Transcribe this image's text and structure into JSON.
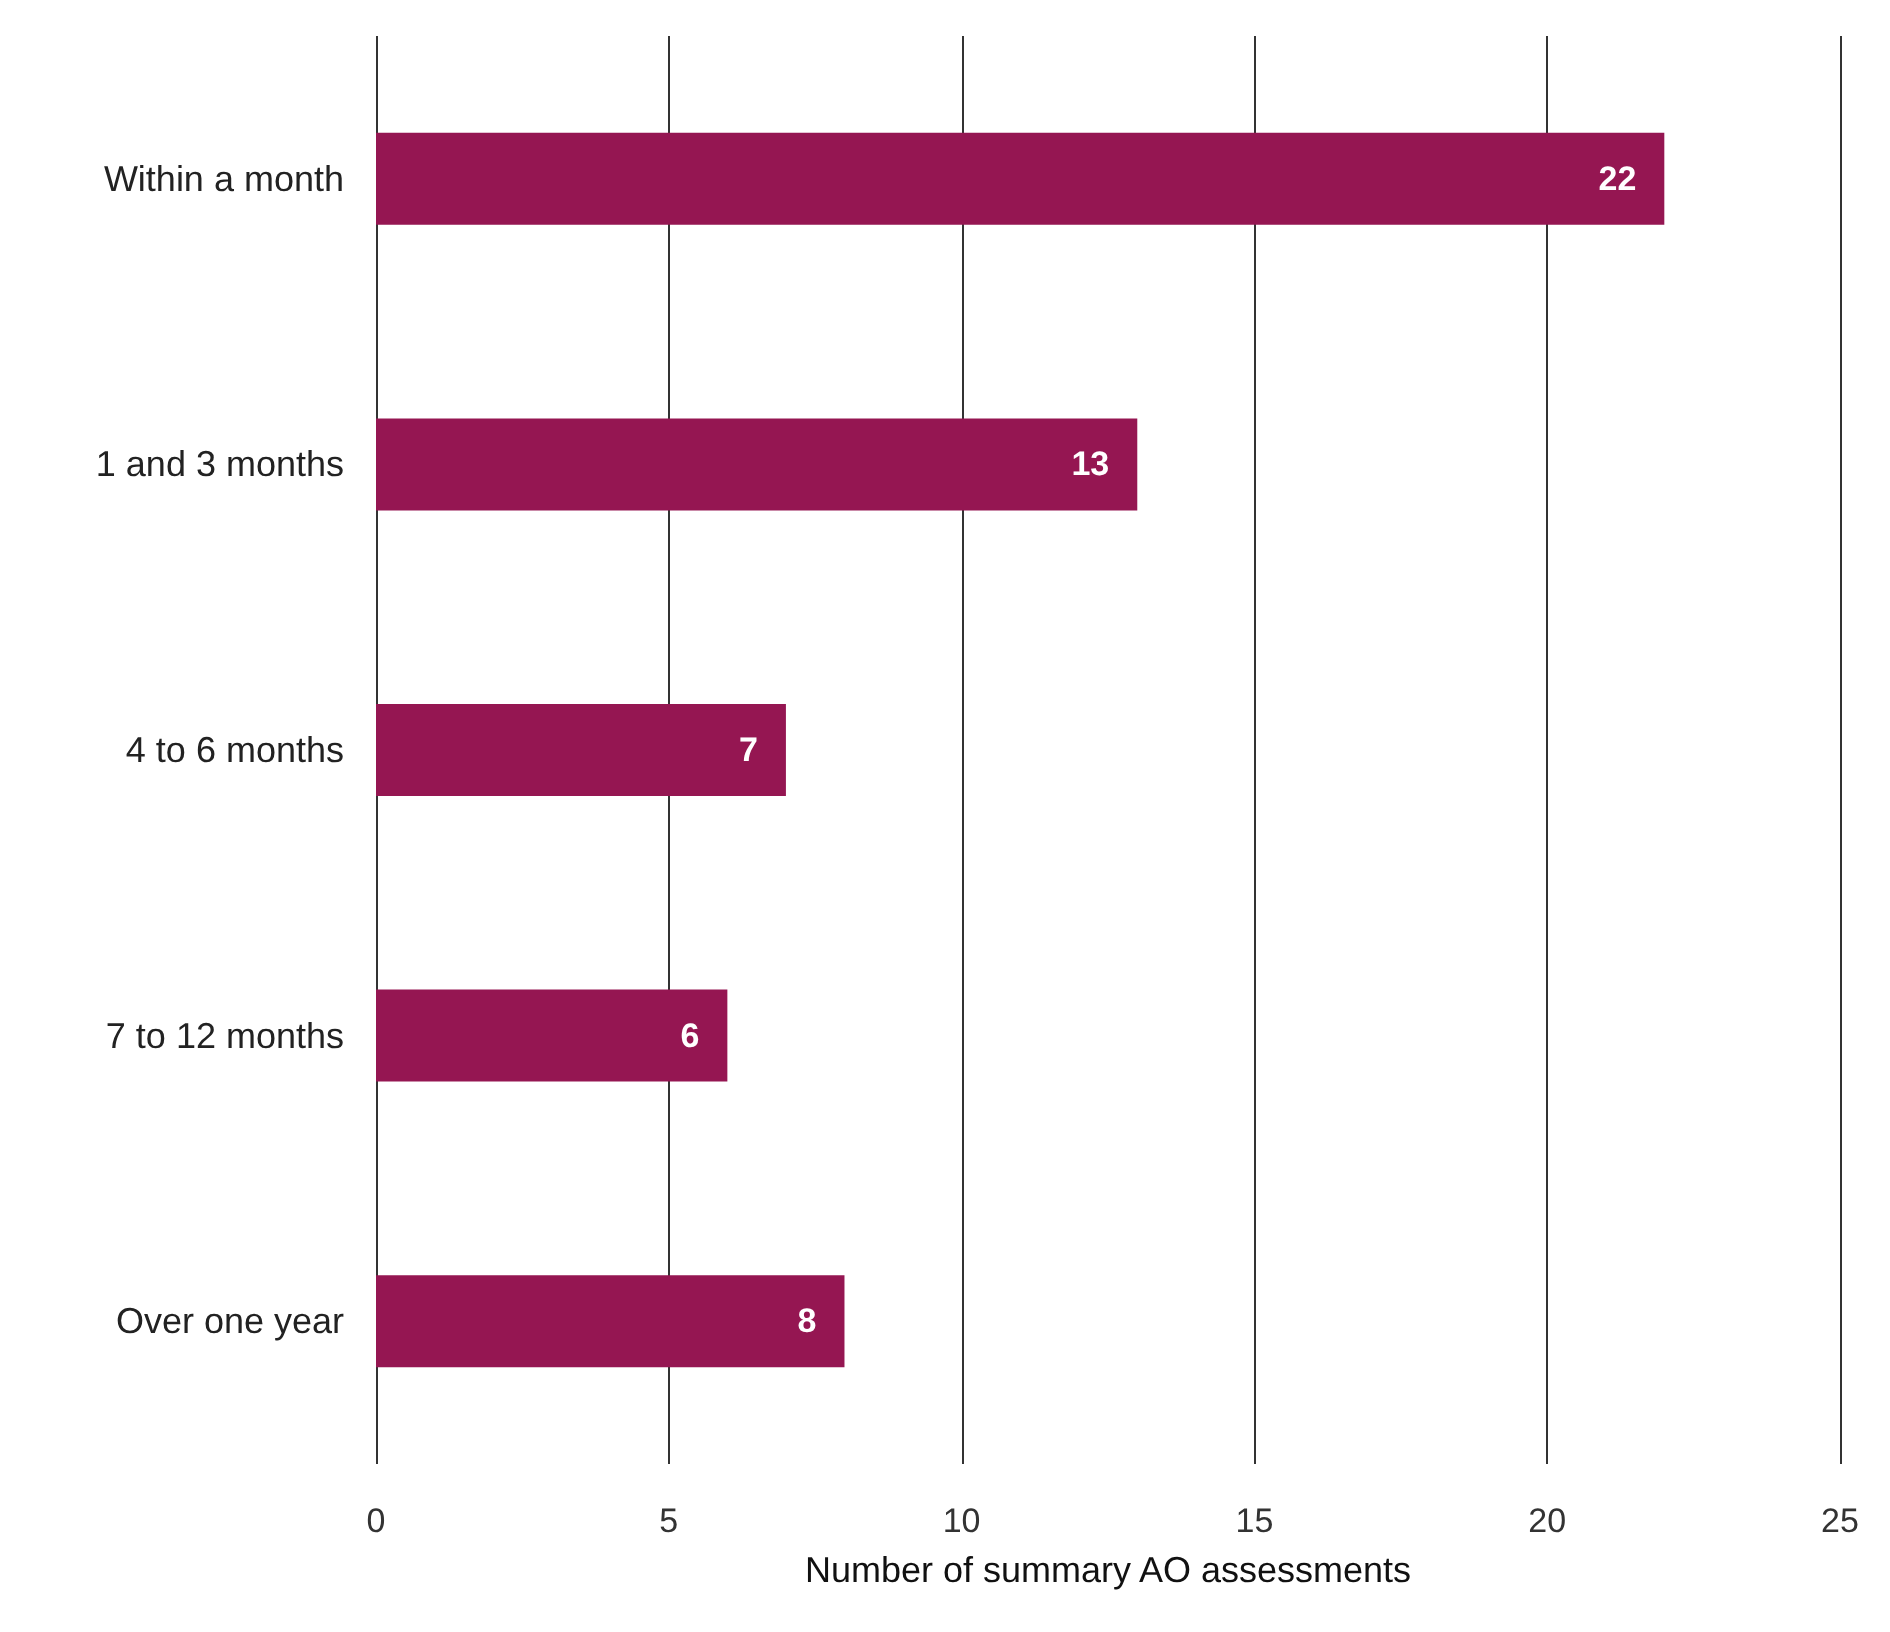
{
  "chart_data": {
    "type": "bar",
    "orientation": "horizontal",
    "xlabel": "Number of summary AO assessments",
    "categories": [
      "Within a month",
      "1 and 3 months",
      "4 to 6 months",
      "7 to 12 months",
      "Over one year"
    ],
    "values": [
      22,
      13,
      7,
      6,
      8
    ],
    "color": "#951652",
    "xlim": [
      0,
      25
    ],
    "xticks": [
      0,
      5,
      10,
      15,
      20,
      25
    ],
    "grid": "x",
    "data_labels": true
  }
}
